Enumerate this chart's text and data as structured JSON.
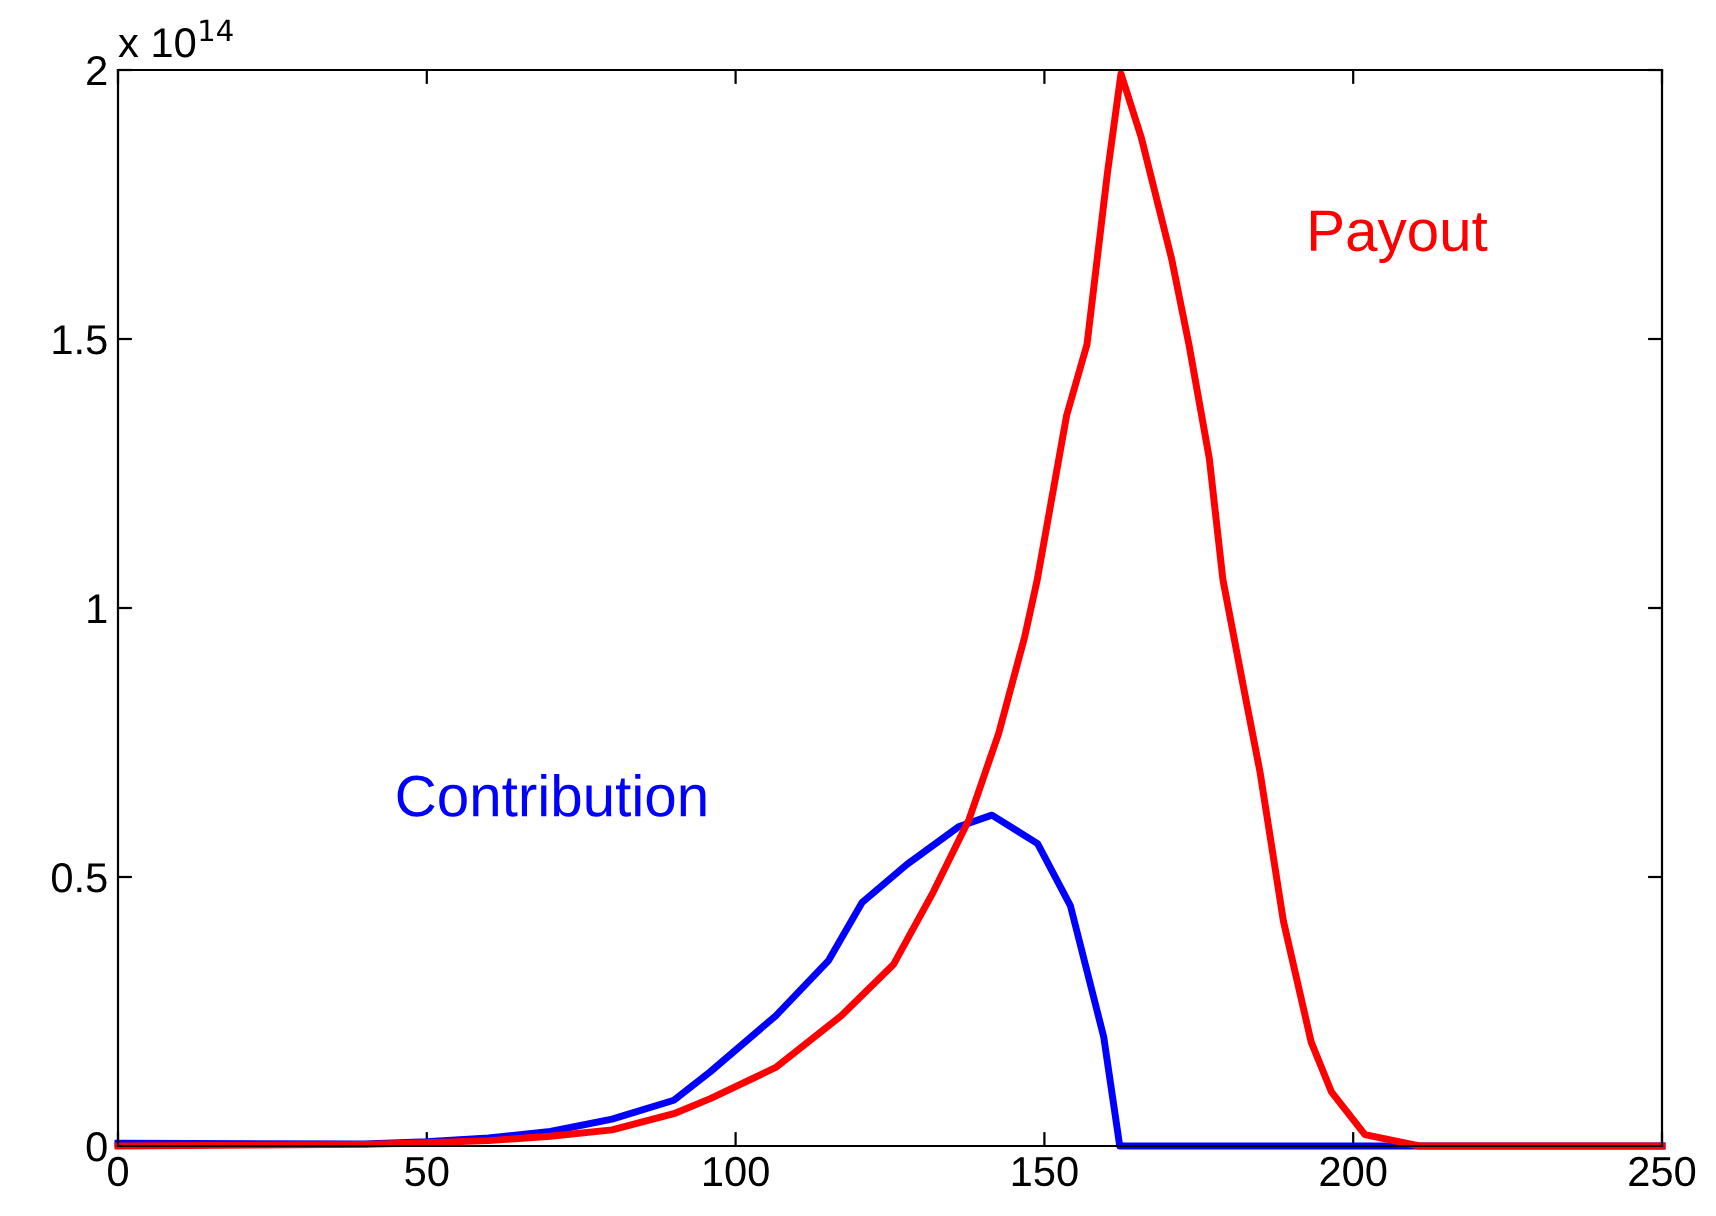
{
  "chart_data": {
    "type": "line",
    "annotations": [
      "x 10$^{14}$"
    ],
    "series": [
      {
        "name": "Contribution",
        "color": "#0000ff",
        "x": [
          0,
          40,
          50,
          60,
          70,
          80,
          90,
          95.9,
          106.5,
          115,
          120.5,
          127.7,
          136.2,
          141.5,
          148.9,
          154.2,
          159.6,
          162.2,
          250
        ],
        "values": [
          0.005,
          0.004,
          0.008,
          0.015,
          0.027,
          0.05,
          0.085,
          0.138,
          0.242,
          0.344,
          0.453,
          0.523,
          0.594,
          0.615,
          0.562,
          0.447,
          0.203,
          0,
          0
        ]
      },
      {
        "name": "Payout",
        "color": "#ff0000",
        "x": [
          0,
          40,
          50,
          60,
          70,
          80,
          90,
          95.9,
          106.5,
          117.1,
          125.6,
          132,
          137.8,
          142.6,
          146.8,
          148.8,
          153.6,
          156.9,
          160.2,
          162.4,
          165.7,
          170.6,
          173.4,
          176.7,
          178.9,
          182.2,
          184.9,
          188.7,
          193.2,
          196.5,
          201.9,
          210.7,
          250
        ],
        "values": [
          0,
          0.003,
          0.006,
          0.01,
          0.018,
          0.03,
          0.06,
          0.088,
          0.146,
          0.242,
          0.338,
          0.472,
          0.607,
          0.767,
          0.946,
          1.05,
          1.358,
          1.49,
          1.808,
          1.993,
          1.874,
          1.649,
          1.49,
          1.278,
          1.053,
          0.855,
          0.696,
          0.418,
          0.193,
          0.1,
          0.021,
          0,
          0
        ]
      }
    ],
    "xlim": [
      0,
      250
    ],
    "xticks": [
      0,
      50,
      100,
      150,
      200,
      250
    ],
    "ylim": [
      0,
      2
    ],
    "yticks": [
      0,
      0.5,
      1,
      1.5,
      2
    ],
    "grid": false,
    "legend": false,
    "marker": "none",
    "line_style": "solid"
  }
}
